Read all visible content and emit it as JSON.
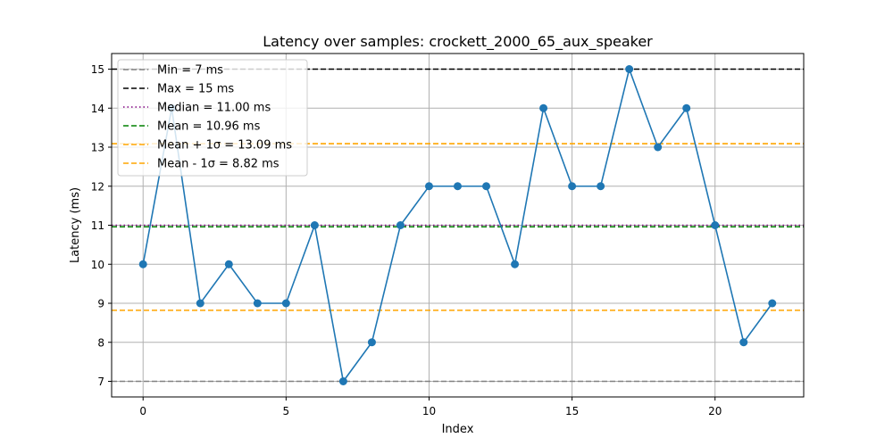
{
  "chart_data": {
    "type": "line",
    "title": "Latency over samples: crockett_2000_65_aux_speaker",
    "xlabel": "Index",
    "ylabel": "Latency (ms)",
    "xlim": [
      -1.1,
      23.1
    ],
    "ylim": [
      6.6,
      15.4
    ],
    "xticks": [
      0,
      5,
      10,
      15,
      20
    ],
    "yticks": [
      7,
      8,
      9,
      10,
      11,
      12,
      13,
      14,
      15
    ],
    "grid": true,
    "legend_position": "upper-left",
    "series": [
      {
        "x": [
          0,
          1,
          2,
          3,
          4,
          5,
          6,
          7,
          8,
          9,
          10,
          11,
          12,
          13,
          14,
          15,
          16,
          17,
          18,
          19,
          20,
          21,
          22
        ],
        "values": [
          10,
          14,
          9,
          10,
          9,
          9,
          11,
          7,
          8,
          11,
          12,
          12,
          12,
          10,
          14,
          12,
          12,
          15,
          13,
          14,
          11,
          8,
          9
        ],
        "color": "#1f77b4"
      }
    ],
    "reference_lines": [
      {
        "label": "Min = 7 ms",
        "y": 7,
        "color": "#808080",
        "style": "dashed"
      },
      {
        "label": "Max = 15 ms",
        "y": 15,
        "color": "#000000",
        "style": "dashed"
      },
      {
        "label": "Median = 11.00 ms",
        "y": 11.0,
        "color": "#800080",
        "style": "dotted"
      },
      {
        "label": "Mean = 10.96 ms",
        "y": 10.96,
        "color": "#008000",
        "style": "dashed"
      },
      {
        "label": "Mean + 1σ = 13.09 ms",
        "y": 13.09,
        "color": "#ffa500",
        "style": "dashed"
      },
      {
        "label": "Mean - 1σ = 8.82 ms",
        "y": 8.82,
        "color": "#ffa500",
        "style": "dashed"
      }
    ]
  }
}
